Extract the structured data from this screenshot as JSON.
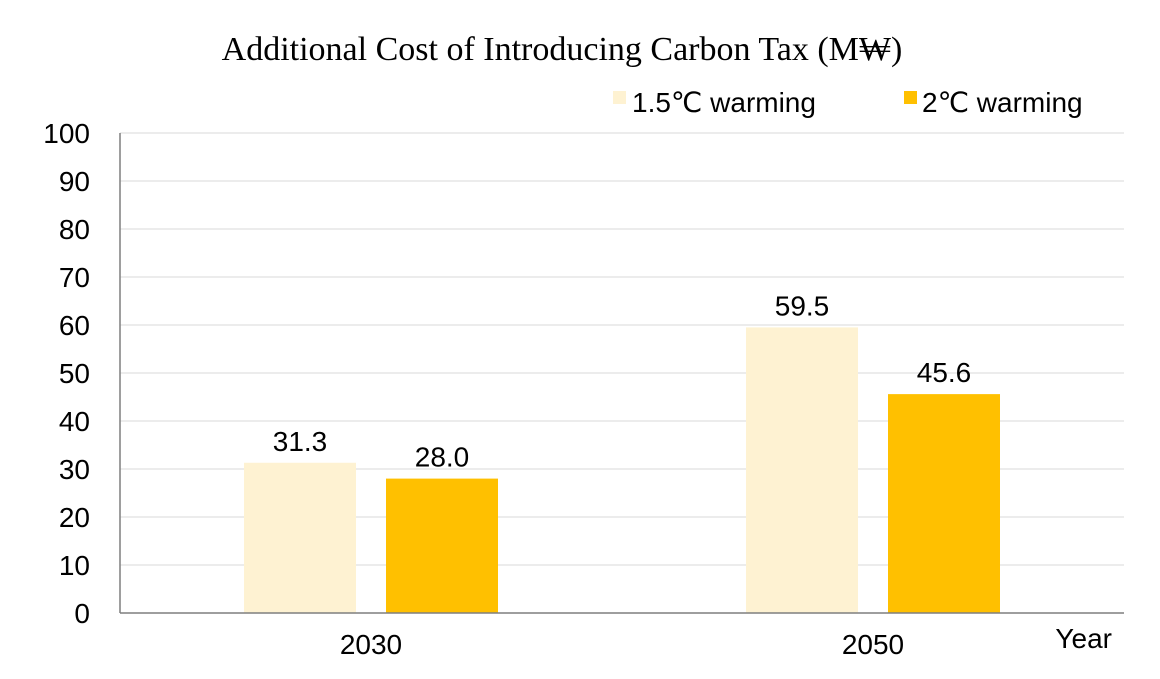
{
  "chart_data": {
    "type": "bar",
    "title": "Additional Cost of Introducing Carbon Tax (M₩)",
    "xlabel": "Year",
    "ylabel": "",
    "categories": [
      "2030",
      "2050"
    ],
    "series": [
      {
        "name": "1.5℃ warming",
        "values": [
          31.3,
          59.5
        ],
        "value_labels": [
          "31.3",
          "59.5"
        ],
        "color": "#FEF2D2"
      },
      {
        "name": "2℃ warming",
        "values": [
          28.0,
          45.6
        ],
        "value_labels": [
          "28.0",
          "45.6"
        ],
        "color": "#FFC000"
      }
    ],
    "ylim": [
      0,
      100
    ],
    "yticks": [
      0,
      10,
      20,
      30,
      40,
      50,
      60,
      70,
      80,
      90,
      100
    ],
    "grid": true,
    "legend_position": "top-right"
  }
}
